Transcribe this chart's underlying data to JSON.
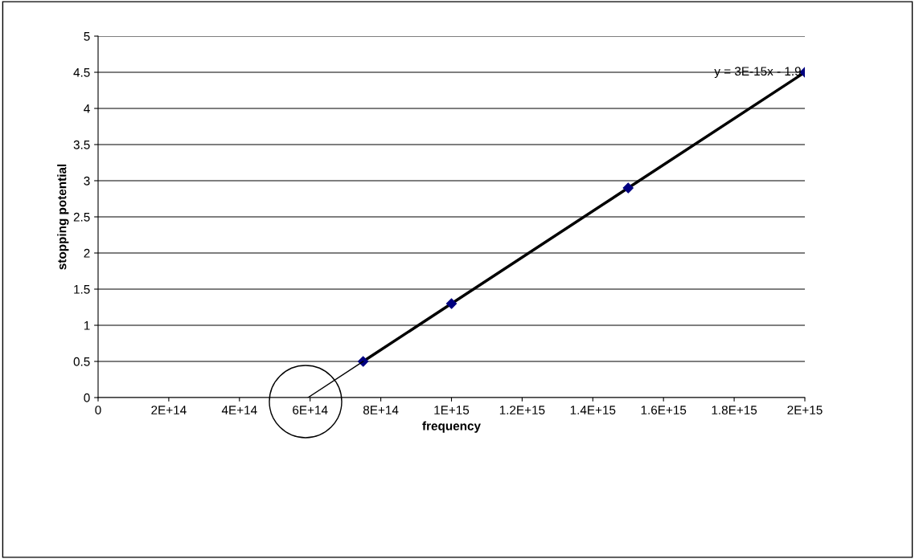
{
  "chart_data": {
    "type": "line",
    "xlabel": "frequency",
    "ylabel": "stopping potential",
    "x": [
      750000000000000,
      1000000000000000,
      1500000000000000,
      2000000000000000
    ],
    "series": [
      {
        "color": "#000080",
        "marker": "diamond",
        "values": [
          0.5,
          1.3,
          2.9,
          4.5
        ]
      },
      {
        "color": "#000000",
        "marker": "none",
        "x": [
          594000000000000,
          750000000000000
        ],
        "values": [
          0,
          0.5
        ]
      }
    ],
    "annotations": [
      "y = 3E-15x - 1.9"
    ],
    "xlim": [
      0,
      2000000000000000
    ],
    "xticks": [
      0,
      {
        "value": 200000000000000,
        "label": "2E+14"
      },
      {
        "value": 400000000000000,
        "label": "4E+14"
      },
      {
        "value": 600000000000000,
        "label": "6E+14"
      },
      {
        "value": 800000000000000,
        "label": "8E+14"
      },
      {
        "value": 1000000000000000,
        "label": "1E+15"
      },
      {
        "value": 1200000000000000,
        "label": "1.2E+15"
      },
      {
        "value": 1400000000000000,
        "label": "1.4E+15"
      },
      {
        "value": 1600000000000000,
        "label": "1.6E+15"
      },
      {
        "value": 1800000000000000,
        "label": "1.8E+15"
      },
      {
        "value": 2000000000000000,
        "label": "2E+15"
      }
    ],
    "ylim": [
      0,
      5
    ],
    "yticks": [
      0,
      0.5,
      1,
      1.5,
      2,
      2.5,
      3,
      3.5,
      4,
      4.5,
      5
    ],
    "grid": "y",
    "legend": false
  }
}
